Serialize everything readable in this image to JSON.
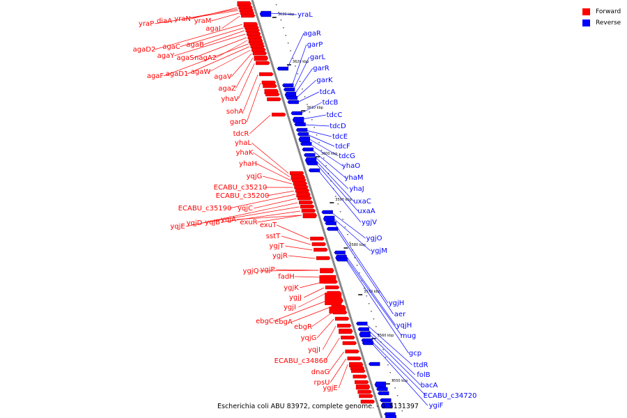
{
  "caption": "Escherichia coli ABU 83972, complete genome. - 0..5131397",
  "legend": [
    {
      "label": "Forward",
      "color": "#ff0000"
    },
    {
      "label": "Reverse",
      "color": "#0000ff"
    }
  ],
  "colors": {
    "forward": "#ff0000",
    "reverse": "#0000ff",
    "backbone": "#888888",
    "tick": "#000000"
  },
  "ticks": [
    "3630 kbp",
    "3620 kbp",
    "3610 kbp",
    "3600 kbp",
    "3590 kbp",
    "3580 kbp",
    "3570 kbp",
    "3560 kbp",
    "3550 kbp"
  ],
  "forward_genes": [
    "yraP",
    "diaA",
    "yraN",
    "yraM",
    "agaI",
    "agaD2",
    "agaC",
    "agaB",
    "agaY",
    "agaS",
    "nagA2",
    "agaF",
    "agaD1",
    "agaW",
    "agaV",
    "agaZ",
    "yhaV",
    "sohA",
    "garD",
    "tdcR",
    "yhaL",
    "yhaK",
    "yhaH",
    "yqjG",
    "ECABU_c35210",
    "ECABU_c35200",
    "ECABU_c35190",
    "yqjC",
    "yqjE",
    "yqjD",
    "yqjB",
    "yqjA",
    "exuR",
    "exuT",
    "sstT",
    "ygjT",
    "ygjR",
    "ygjQ",
    "ygjP",
    "fadH",
    "ygjK",
    "ygjJ",
    "ygjI",
    "ebgC",
    "ebgA",
    "ebgR",
    "yqjG",
    "yqjI",
    "ECABU_c34860",
    "dnaG",
    "rpsU",
    "ygjE"
  ],
  "reverse_genes": [
    "yraL",
    "agaR",
    "garP",
    "garL",
    "garR",
    "garK",
    "tdcA",
    "tdcB",
    "tdcC",
    "tdcD",
    "tdcE",
    "tdcF",
    "tdcG",
    "yhaO",
    "yhaM",
    "yhaJ",
    "uxaC",
    "uxaA",
    "ygjV",
    "ygjO",
    "ygjM",
    "ygjH",
    "aer",
    "yqjH",
    "mug",
    "gcp",
    "ttdR",
    "folB",
    "bacA",
    "ECABU_c34720",
    "ygiF"
  ]
}
